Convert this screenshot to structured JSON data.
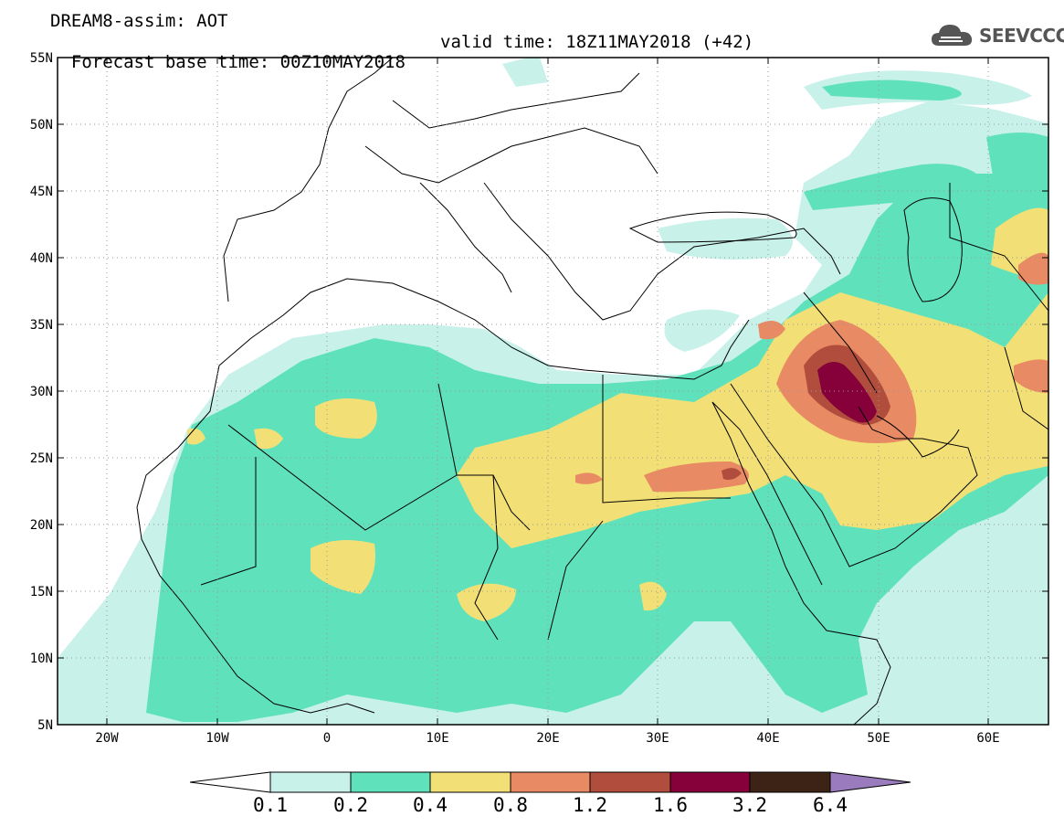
{
  "header": {
    "model_line": "DREAM8-assim: AOT",
    "base_time_line": "Forecast base time: 00Z10MAY2018",
    "valid_time_line": "valid time: 18Z11MAY2018 (+42)"
  },
  "logo": {
    "text": "SEEVCCC",
    "icon": "cloud-icon"
  },
  "map": {
    "lon_range": [
      -25,
      65
    ],
    "lat_range": [
      5,
      55
    ],
    "lat_ticks": [
      "55N",
      "50N",
      "45N",
      "40N",
      "35N",
      "30N",
      "25N",
      "20N",
      "15N",
      "10N",
      "5N"
    ],
    "lon_ticks": [
      "20W",
      "10W",
      "0",
      "10E",
      "20E",
      "30E",
      "40E",
      "50E",
      "60E"
    ],
    "gridlines": "dotted"
  },
  "colorbar": {
    "levels": [
      "0.1",
      "0.2",
      "0.4",
      "0.8",
      "1.2",
      "1.6",
      "3.2",
      "6.4"
    ],
    "colors": [
      "#c8f1ea",
      "#5fe2bb",
      "#f2e076",
      "#e88a63",
      "#b14d3c",
      "#86003a",
      "#3d2315",
      "#9a7bbd"
    ],
    "low_end_color": "#ffffff"
  }
}
